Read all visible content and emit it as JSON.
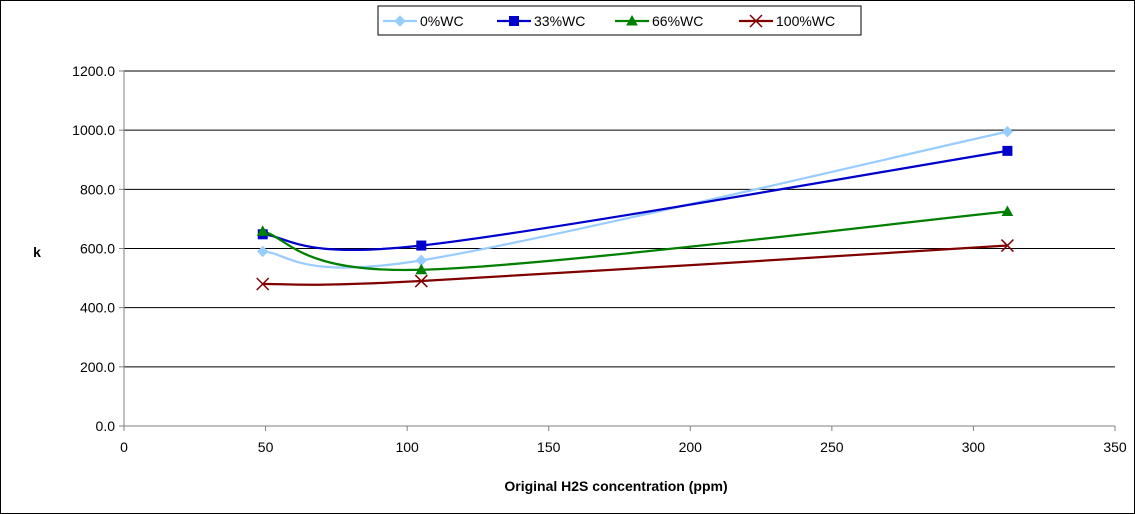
{
  "chart_data": {
    "type": "line",
    "xlabel": "Original H2S concentration (ppm)",
    "ylabel": "k",
    "xlim": [
      0,
      350
    ],
    "ylim": [
      0,
      1200
    ],
    "xticks": [
      0,
      50,
      100,
      150,
      200,
      250,
      300,
      350
    ],
    "yticks": [
      0,
      200,
      400,
      600,
      800,
      1000,
      1200
    ],
    "xtick_labels": [
      "0",
      "50",
      "100",
      "150",
      "200",
      "250",
      "300",
      "350"
    ],
    "ytick_labels": [
      "0.0",
      "200.0",
      "400.0",
      "600.0",
      "800.0",
      "1000.0",
      "1200.0"
    ],
    "grid": "horizontal major gridlines",
    "legend_position": "top",
    "smoothed": true,
    "series": [
      {
        "name": "0%WC",
        "color": "#99CCFF",
        "marker": "diamond",
        "x": [
          49,
          105,
          312
        ],
        "y": [
          590,
          560,
          995
        ]
      },
      {
        "name": "33%WC",
        "color": "#0000CC",
        "marker": "square",
        "x": [
          49,
          105,
          312
        ],
        "y": [
          648,
          610,
          930
        ]
      },
      {
        "name": "66%WC",
        "color": "#008000",
        "marker": "triangle",
        "x": [
          49,
          105,
          312
        ],
        "y": [
          658,
          528,
          725
        ]
      },
      {
        "name": "100%WC",
        "color": "#800000",
        "marker": "x",
        "x": [
          49,
          105,
          312
        ],
        "y": [
          480,
          490,
          610
        ]
      }
    ]
  }
}
